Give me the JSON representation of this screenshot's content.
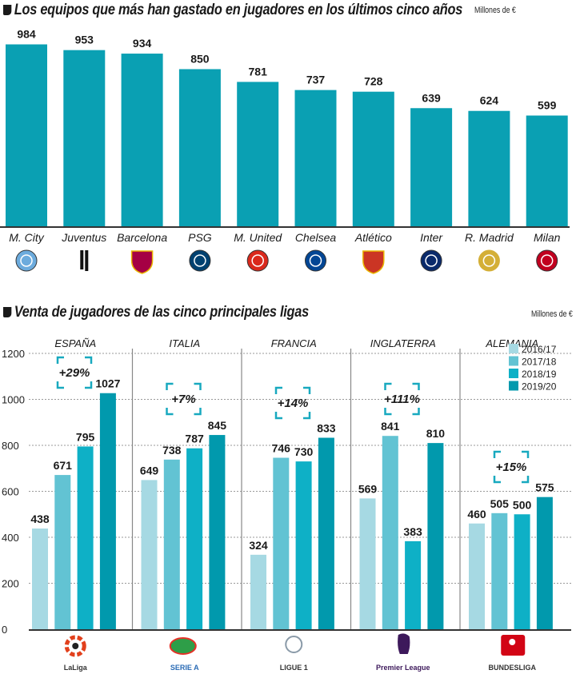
{
  "top": {
    "title": "Los equipos que más han gastado en jugadores en los últimos cinco años",
    "units": "Millones de €"
  },
  "bottom": {
    "title": "Venta de jugadores de las cinco principales ligas",
    "units": "Millones de €"
  },
  "colors": {
    "top_bar": "#0aa0b3",
    "s2016": "#a6d9e3",
    "s2017": "#62c3d3",
    "s2018": "#0eb0c6",
    "s2019": "#0199ad",
    "bracket": "#18a9bf"
  },
  "chart_data": [
    {
      "type": "bar",
      "title": "Los equipos que más han gastado en jugadores en los últimos cinco años",
      "ylabel": "Millones de €",
      "categories": [
        "M. City",
        "Juventus",
        "Barcelona",
        "PSG",
        "M. United",
        "Chelsea",
        "Atlético",
        "Inter",
        "R. Madrid",
        "Milan"
      ],
      "logos": [
        "man-city-crest",
        "juventus-crest",
        "barcelona-crest",
        "psg-crest",
        "man-united-crest",
        "chelsea-crest",
        "atletico-crest",
        "inter-crest",
        "real-madrid-crest",
        "milan-crest"
      ],
      "values": [
        984,
        953,
        934,
        850,
        781,
        737,
        728,
        639,
        624,
        599
      ],
      "ylim": [
        0,
        1000
      ],
      "grid": false
    },
    {
      "type": "bar",
      "title": "Venta de jugadores de las cinco principales ligas",
      "ylabel": "Millones de €",
      "categories": [
        "ESPAÑA",
        "ITALIA",
        "FRANCIA",
        "INGLATERRA",
        "ALEMANIA"
      ],
      "league_logos": [
        {
          "name": "laliga-logo",
          "text": "LaLiga"
        },
        {
          "name": "serie-a-logo",
          "text": "SERIE A"
        },
        {
          "name": "ligue-1-logo",
          "text": "LIGUE 1"
        },
        {
          "name": "premier-league-logo",
          "text": "Premier League"
        },
        {
          "name": "bundesliga-logo",
          "text": "BUNDESLIGA"
        }
      ],
      "series": [
        {
          "name": "2016/17",
          "values": [
            438,
            649,
            324,
            569,
            460
          ]
        },
        {
          "name": "2017/18",
          "values": [
            671,
            738,
            746,
            841,
            505
          ]
        },
        {
          "name": "2018/19",
          "values": [
            795,
            787,
            730,
            383,
            500
          ]
        },
        {
          "name": "2019/20",
          "values": [
            1027,
            845,
            833,
            810,
            575
          ]
        }
      ],
      "growth": [
        "+29%",
        "+7%",
        "+14%",
        "+111%",
        "+15%"
      ],
      "yticks": [
        0,
        200,
        400,
        600,
        800,
        1000,
        1200
      ],
      "ylim": [
        0,
        1200
      ],
      "grid": true,
      "legend": "top-right"
    }
  ]
}
